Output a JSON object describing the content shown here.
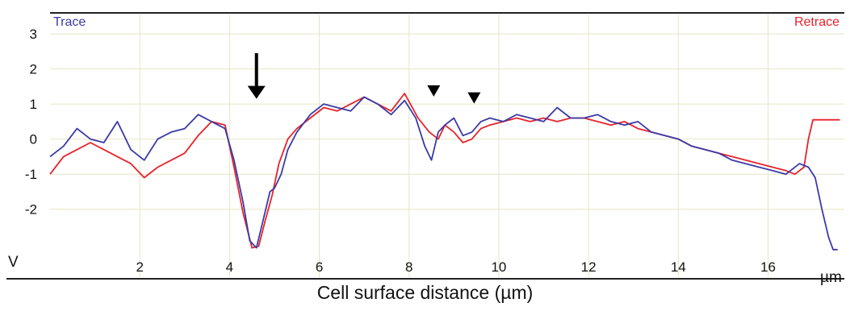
{
  "chart_data": {
    "type": "line",
    "xlabel": "Cell surface distance (µm)",
    "x_unit": "µm",
    "ylabel": "V",
    "xlim": [
      0,
      17.7
    ],
    "ylim": [
      -3.2,
      3
    ],
    "x_ticks": [
      "2",
      "4",
      "6",
      "8",
      "10",
      "12",
      "14",
      "16"
    ],
    "y_ticks": [
      "3",
      "2",
      "1",
      "0",
      "-1",
      "-2"
    ],
    "grid": true,
    "colors": {
      "trace": "#3a3aa8",
      "retrace": "#e8222a",
      "grid": "#e6e6c4",
      "markers": "#000000"
    },
    "series": [
      {
        "name": "Trace",
        "color": "#3a3aa8",
        "x": [
          0,
          0.3,
          0.6,
          0.9,
          1.2,
          1.5,
          1.8,
          2.1,
          2.4,
          2.7,
          3.0,
          3.3,
          3.6,
          3.9,
          4.1,
          4.3,
          4.45,
          4.6,
          4.75,
          4.9,
          5.0,
          5.15,
          5.3,
          5.5,
          5.8,
          6.1,
          6.4,
          6.7,
          7.0,
          7.3,
          7.6,
          7.9,
          8.15,
          8.35,
          8.5,
          8.65,
          8.8,
          9.0,
          9.2,
          9.4,
          9.6,
          9.8,
          10.1,
          10.4,
          10.7,
          11.0,
          11.3,
          11.6,
          11.9,
          12.2,
          12.5,
          12.8,
          13.1,
          13.4,
          13.7,
          14.0,
          14.3,
          14.6,
          14.9,
          15.2,
          15.5,
          15.8,
          16.1,
          16.4,
          16.7,
          16.9,
          17.05,
          17.2,
          17.35,
          17.45,
          17.55
        ],
        "y": [
          -0.5,
          -0.2,
          0.3,
          0.0,
          -0.1,
          0.5,
          -0.3,
          -0.6,
          0.0,
          0.2,
          0.3,
          0.7,
          0.5,
          0.3,
          -0.6,
          -1.8,
          -2.9,
          -3.1,
          -2.3,
          -1.5,
          -1.4,
          -1.0,
          -0.3,
          0.2,
          0.7,
          1.0,
          0.9,
          0.8,
          1.2,
          1.0,
          0.7,
          1.1,
          0.6,
          -0.2,
          -0.6,
          0.2,
          0.4,
          0.6,
          0.1,
          0.2,
          0.5,
          0.6,
          0.5,
          0.7,
          0.6,
          0.5,
          0.9,
          0.6,
          0.6,
          0.7,
          0.5,
          0.4,
          0.5,
          0.2,
          0.1,
          0.0,
          -0.2,
          -0.3,
          -0.4,
          -0.6,
          -0.7,
          -0.8,
          -0.9,
          -1.0,
          -0.7,
          -0.8,
          -1.1,
          -2.0,
          -2.8,
          -3.15,
          -3.15
        ]
      },
      {
        "name": "Retrace",
        "color": "#e8222a",
        "x": [
          0,
          0.3,
          0.6,
          0.9,
          1.2,
          1.5,
          1.8,
          2.1,
          2.4,
          2.7,
          3.0,
          3.3,
          3.6,
          3.9,
          4.1,
          4.3,
          4.5,
          4.65,
          4.8,
          4.95,
          5.1,
          5.3,
          5.5,
          5.8,
          6.1,
          6.4,
          6.7,
          7.0,
          7.3,
          7.6,
          7.9,
          8.2,
          8.45,
          8.65,
          8.8,
          9.0,
          9.2,
          9.4,
          9.6,
          9.8,
          10.1,
          10.4,
          10.7,
          11.0,
          11.3,
          11.6,
          11.9,
          12.2,
          12.5,
          12.8,
          13.1,
          13.4,
          13.7,
          14.0,
          14.3,
          14.6,
          14.9,
          15.2,
          15.5,
          15.8,
          16.1,
          16.4,
          16.6,
          16.8,
          16.9,
          17.0,
          17.3,
          17.6
        ],
        "y": [
          -1.0,
          -0.5,
          -0.3,
          -0.1,
          -0.3,
          -0.5,
          -0.7,
          -1.1,
          -0.8,
          -0.6,
          -0.4,
          0.1,
          0.5,
          0.4,
          -0.8,
          -2.1,
          -3.1,
          -3.05,
          -2.3,
          -1.6,
          -0.7,
          0.0,
          0.3,
          0.6,
          0.9,
          0.8,
          1.0,
          1.2,
          1.0,
          0.8,
          1.3,
          0.6,
          0.2,
          0.0,
          0.4,
          0.2,
          -0.1,
          0.0,
          0.3,
          0.4,
          0.5,
          0.6,
          0.5,
          0.6,
          0.5,
          0.6,
          0.6,
          0.5,
          0.4,
          0.5,
          0.3,
          0.2,
          0.1,
          0.0,
          -0.2,
          -0.3,
          -0.4,
          -0.5,
          -0.6,
          -0.7,
          -0.8,
          -0.9,
          -1.0,
          -0.8,
          0.0,
          0.55,
          0.55,
          0.55
        ]
      }
    ],
    "annotations": [
      {
        "type": "arrow-down",
        "x": 4.6,
        "y_top": 2.45,
        "y_bottom": 1.15
      },
      {
        "type": "triangle-down",
        "x": 8.55,
        "y": 1.35
      },
      {
        "type": "triangle-down",
        "x": 9.45,
        "y": 1.15
      }
    ]
  }
}
